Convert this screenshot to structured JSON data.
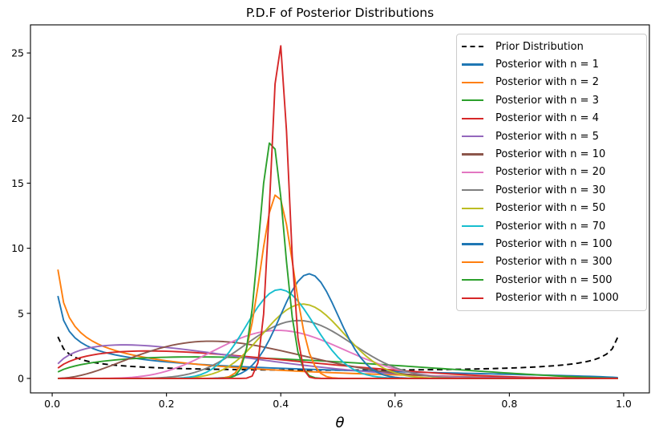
{
  "figure": {
    "title": "P.D.F of Posterior Distributions",
    "xlabel": "θ",
    "background_color": "#ffffff",
    "axes_edge_color": "#000000"
  },
  "chart_data": {
    "type": "line",
    "title": "P.D.F of Posterior Distributions",
    "xlabel": "θ",
    "ylabel": "",
    "grid": false,
    "xlim": [
      -0.038,
      1.045
    ],
    "ylim": [
      -1.11,
      27.16
    ],
    "xticks": [
      0,
      0.2,
      0.4,
      0.6,
      0.8,
      1.0
    ],
    "xtick_labels": [
      "0.0",
      "0.2",
      "0.4",
      "0.6",
      "0.8",
      "1.0"
    ],
    "yticks": [
      0,
      5,
      10,
      15,
      20,
      25
    ],
    "ytick_labels": [
      "0",
      "5",
      "10",
      "15",
      "20",
      "25"
    ],
    "legend_position": "upper right",
    "legend_border_color": "#cccccc",
    "curve_model": "beta_pdf",
    "x_sampling": {
      "start": 0.01,
      "end": 0.99,
      "step": 0.01
    },
    "series": [
      {
        "label": "Prior Distribution",
        "color": "#000000",
        "linestyle": "dashed",
        "alpha": 0.5,
        "beta": 0.5,
        "peak": {
          "x": 0.99,
          "y": 3.2
        }
      },
      {
        "label": "Posterior with n = 1",
        "color": "#1f77b4",
        "linestyle": "solid",
        "alpha": 0.5,
        "beta": 1.5,
        "peak": {
          "x": 0.01,
          "y": 6.3
        }
      },
      {
        "label": "Posterior with n = 2",
        "color": "#ff7f0e",
        "linestyle": "solid",
        "alpha": 0.5,
        "beta": 2.5,
        "peak": {
          "x": 0.01,
          "y": 8.4
        }
      },
      {
        "label": "Posterior with n = 3",
        "color": "#2ca02c",
        "linestyle": "solid",
        "alpha": 1.5,
        "beta": 2.5,
        "peak": {
          "x": 0.25,
          "y": 1.7
        }
      },
      {
        "label": "Posterior with n = 4",
        "color": "#d62728",
        "linestyle": "solid",
        "alpha": 1.5,
        "beta": 3.5,
        "peak": {
          "x": 0.17,
          "y": 2.1
        }
      },
      {
        "label": "Posterior with n = 5",
        "color": "#9467bd",
        "linestyle": "solid",
        "alpha": 1.5,
        "beta": 4.5,
        "peak": {
          "x": 0.12,
          "y": 2.6
        }
      },
      {
        "label": "Posterior with n = 10",
        "color": "#8c564b",
        "linestyle": "solid",
        "alpha": 3.5,
        "beta": 7.5,
        "peak": {
          "x": 0.28,
          "y": 2.9
        }
      },
      {
        "label": "Posterior with n = 20",
        "color": "#e377c2",
        "linestyle": "solid",
        "alpha": 8.5,
        "beta": 12.5,
        "peak": {
          "x": 0.4,
          "y": 3.7
        }
      },
      {
        "label": "Posterior with n = 30",
        "color": "#7f7f7f",
        "linestyle": "solid",
        "alpha": 13.5,
        "beta": 17.5,
        "peak": {
          "x": 0.43,
          "y": 4.5
        }
      },
      {
        "label": "Posterior with n = 50",
        "color": "#bcbd22",
        "linestyle": "solid",
        "alpha": 22.5,
        "beta": 28.5,
        "peak": {
          "x": 0.44,
          "y": 5.7
        }
      },
      {
        "label": "Posterior with n = 70",
        "color": "#17becf",
        "linestyle": "solid",
        "alpha": 28.5,
        "beta": 42.5,
        "peak": {
          "x": 0.4,
          "y": 6.8
        }
      },
      {
        "label": "Posterior with n = 100",
        "color": "#1f77b4",
        "linestyle": "solid",
        "alpha": 45.5,
        "beta": 55.5,
        "peak": {
          "x": 0.44,
          "y": 8.1
        }
      },
      {
        "label": "Posterior with n = 300",
        "color": "#ff7f0e",
        "linestyle": "solid",
        "alpha": 118.5,
        "beta": 182.5,
        "peak": {
          "x": 0.39,
          "y": 14.3
        }
      },
      {
        "label": "Posterior with n = 500",
        "color": "#2ca02c",
        "linestyle": "solid",
        "alpha": 192.5,
        "beta": 308.5,
        "peak": {
          "x": 0.38,
          "y": 18.4
        }
      },
      {
        "label": "Posterior with n = 1000",
        "color": "#d62728",
        "linestyle": "solid",
        "alpha": 398.5,
        "beta": 602.5,
        "peak": {
          "x": 0.4,
          "y": 25.6
        }
      }
    ]
  }
}
